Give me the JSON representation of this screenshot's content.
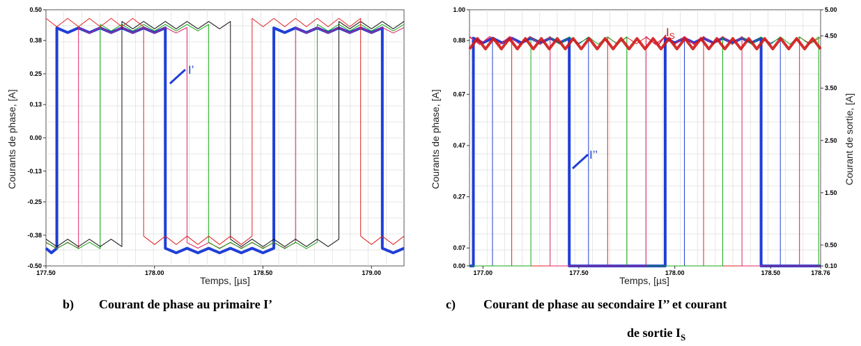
{
  "chart_data": [
    {
      "type": "line",
      "caption_letter": "b)",
      "caption": "Courant de phase au primaire I’",
      "xlabel": "Temps, [µs]",
      "ylabel": "Courants de phase, [A]",
      "xlim": [
        177.5,
        179.15
      ],
      "ylim": [
        -0.5,
        0.5
      ],
      "x_ticks": [
        "177.50",
        "178.00",
        "178.50",
        "179.00"
      ],
      "y_ticks": [
        "0.50",
        "0.38",
        "0.25",
        "0.13",
        "0.00",
        "-0.13",
        "-0.25",
        "-0.38",
        "-0.50"
      ],
      "grid": true,
      "annotation": "I’",
      "series": [
        {
          "color": "#1f3fd6",
          "bold": true,
          "high": 0.42,
          "low": -0.44,
          "segments": [
            [
              177.5,
              177.55,
              0
            ],
            [
              177.55,
              178.05,
              1
            ],
            [
              178.05,
              178.55,
              0
            ],
            [
              178.55,
              179.05,
              1
            ],
            [
              179.05,
              179.15,
              0
            ]
          ]
        },
        {
          "color": "#e0206a",
          "high": 0.42,
          "low": -0.42,
          "segments": [
            [
              177.5,
              177.65,
              0
            ],
            [
              177.65,
              178.15,
              1
            ],
            [
              178.15,
              178.65,
              0
            ],
            [
              178.65,
              179.15,
              1
            ]
          ]
        },
        {
          "color": "#18a818",
          "high": 0.43,
          "low": -0.42,
          "segments": [
            [
              177.5,
              177.75,
              0
            ],
            [
              177.75,
              178.25,
              1
            ],
            [
              178.25,
              178.75,
              0
            ],
            [
              178.75,
              179.15,
              1
            ]
          ]
        },
        {
          "color": "#111111",
          "high": 0.44,
          "low": -0.41,
          "segments": [
            [
              177.5,
              177.85,
              0
            ],
            [
              177.85,
              178.35,
              1
            ],
            [
              178.35,
              178.85,
              0
            ],
            [
              178.85,
              179.15,
              1
            ]
          ]
        },
        {
          "color": "#e02020",
          "high": 0.45,
          "low": -0.4,
          "segments": [
            [
              177.5,
              177.95,
              1
            ],
            [
              177.95,
              178.45,
              0
            ],
            [
              178.45,
              178.95,
              1
            ],
            [
              178.95,
              179.15,
              0
            ]
          ]
        }
      ]
    },
    {
      "type": "line",
      "caption_letter": "c)",
      "caption": "Courant de phase au secondaire I’’ et courant",
      "caption_line2": "de sortie I",
      "caption_subscript": "S",
      "xlabel": "Temps, [µs]",
      "ylabel": "Courants de phase, [A]",
      "ylabel_right": "Courant de sortie, [A]",
      "xlim": [
        176.93,
        178.76
      ],
      "ylim": [
        0,
        1
      ],
      "ylim_right": [
        0.1,
        5
      ],
      "x_ticks": [
        "177.00",
        "177.50",
        "178.00",
        "178.50",
        "178.76"
      ],
      "y_ticks": [
        "1.00",
        "0.88",
        "0.67",
        "0.47",
        "0.27",
        "0.07",
        "0.00"
      ],
      "y_ticks_right": [
        "5.00",
        "4.50",
        "3.50",
        "2.50",
        "1.50",
        "0.50",
        "0.10"
      ],
      "grid": true,
      "annotations": [
        "I’’",
        "I",
        "S"
      ],
      "output_current": {
        "color": "#d01818",
        "mean": 4.35,
        "ripple": 0.1,
        "cycles": 22
      },
      "series": [
        {
          "color": "#1f3fd6",
          "bold": true,
          "high": 0.88,
          "low": 0.0,
          "segments": [
            [
              176.93,
              176.95,
              0
            ],
            [
              176.95,
              177.45,
              1
            ],
            [
              177.45,
              177.95,
              0
            ],
            [
              177.95,
              178.45,
              1
            ],
            [
              178.45,
              178.76,
              0
            ]
          ]
        },
        {
          "color": "#1f3fd6",
          "high": 0.88,
          "low": 0.0,
          "segments": [
            [
              176.93,
              177.05,
              0
            ],
            [
              177.05,
              177.55,
              1
            ],
            [
              177.55,
              178.05,
              0
            ],
            [
              178.05,
              178.55,
              1
            ],
            [
              178.55,
              178.76,
              0
            ]
          ]
        },
        {
          "color": "#e02020",
          "high": 0.88,
          "low": 0.0,
          "segments": [
            [
              176.93,
              177.15,
              1
            ],
            [
              177.15,
              177.65,
              0
            ],
            [
              177.65,
              178.15,
              1
            ],
            [
              178.15,
              178.65,
              0
            ],
            [
              178.65,
              178.76,
              1
            ]
          ]
        },
        {
          "color": "#18a818",
          "high": 0.88,
          "low": 0.0,
          "segments": [
            [
              176.93,
              177.25,
              0
            ],
            [
              177.25,
              177.75,
              1
            ],
            [
              177.75,
              178.25,
              0
            ],
            [
              178.25,
              178.75,
              1
            ],
            [
              178.75,
              178.76,
              0
            ]
          ]
        },
        {
          "color": "#e0206a",
          "high": 0.88,
          "low": 0.0,
          "segments": [
            [
              176.93,
              177.35,
              1
            ],
            [
              177.35,
              177.85,
              0
            ],
            [
              177.85,
              178.35,
              1
            ],
            [
              178.35,
              178.76,
              0
            ]
          ]
        }
      ]
    }
  ]
}
